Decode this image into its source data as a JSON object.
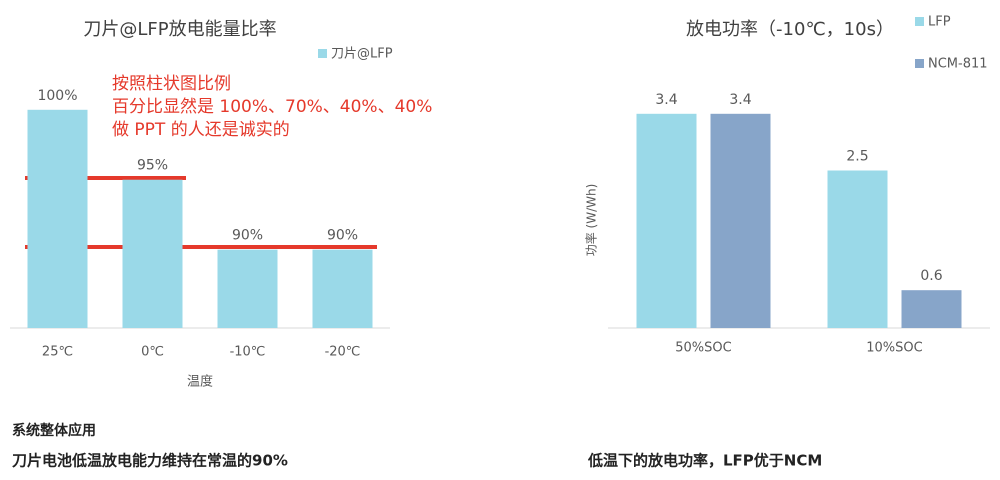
{
  "chart_data": [
    {
      "type": "bar",
      "title": "刀片@LFP放电能量比率",
      "x_label": "温度",
      "categories": [
        "25℃",
        "0℃",
        "-10℃",
        "-20℃"
      ],
      "series": [
        {
          "name": "刀片@LFP",
          "color": "#9ad9e8",
          "values": [
            100,
            95,
            90,
            90
          ],
          "value_labels": [
            "100%",
            "95%",
            "90%",
            "90%"
          ]
        }
      ],
      "ylim": [
        84.4,
        100.7
      ],
      "legend": "top-right"
    },
    {
      "type": "bar",
      "title": "放电功率（-10℃，10s）",
      "y_label": "功率 (W/Wh)",
      "categories": [
        "50%SOC",
        "10%SOC"
      ],
      "series": [
        {
          "name": "LFP",
          "color": "#9ad9e8",
          "values": [
            3.4,
            2.5
          ]
        },
        {
          "name": "NCM-811",
          "color": "#87a5c9",
          "values": [
            3.4,
            0.6
          ]
        }
      ],
      "ylim": [
        0,
        4
      ],
      "legend": "top-right"
    }
  ],
  "annotation": [
    "按照柱状图比例",
    "百分比显然是 100%、70%、40%、40%",
    "做 PPT 的人还是诚实的"
  ],
  "captions": {
    "section": "系统整体应用",
    "left": "刀片电池低温放电能力维持在常温的90%",
    "right": "低温下的放电功率，LFP优于NCM"
  }
}
